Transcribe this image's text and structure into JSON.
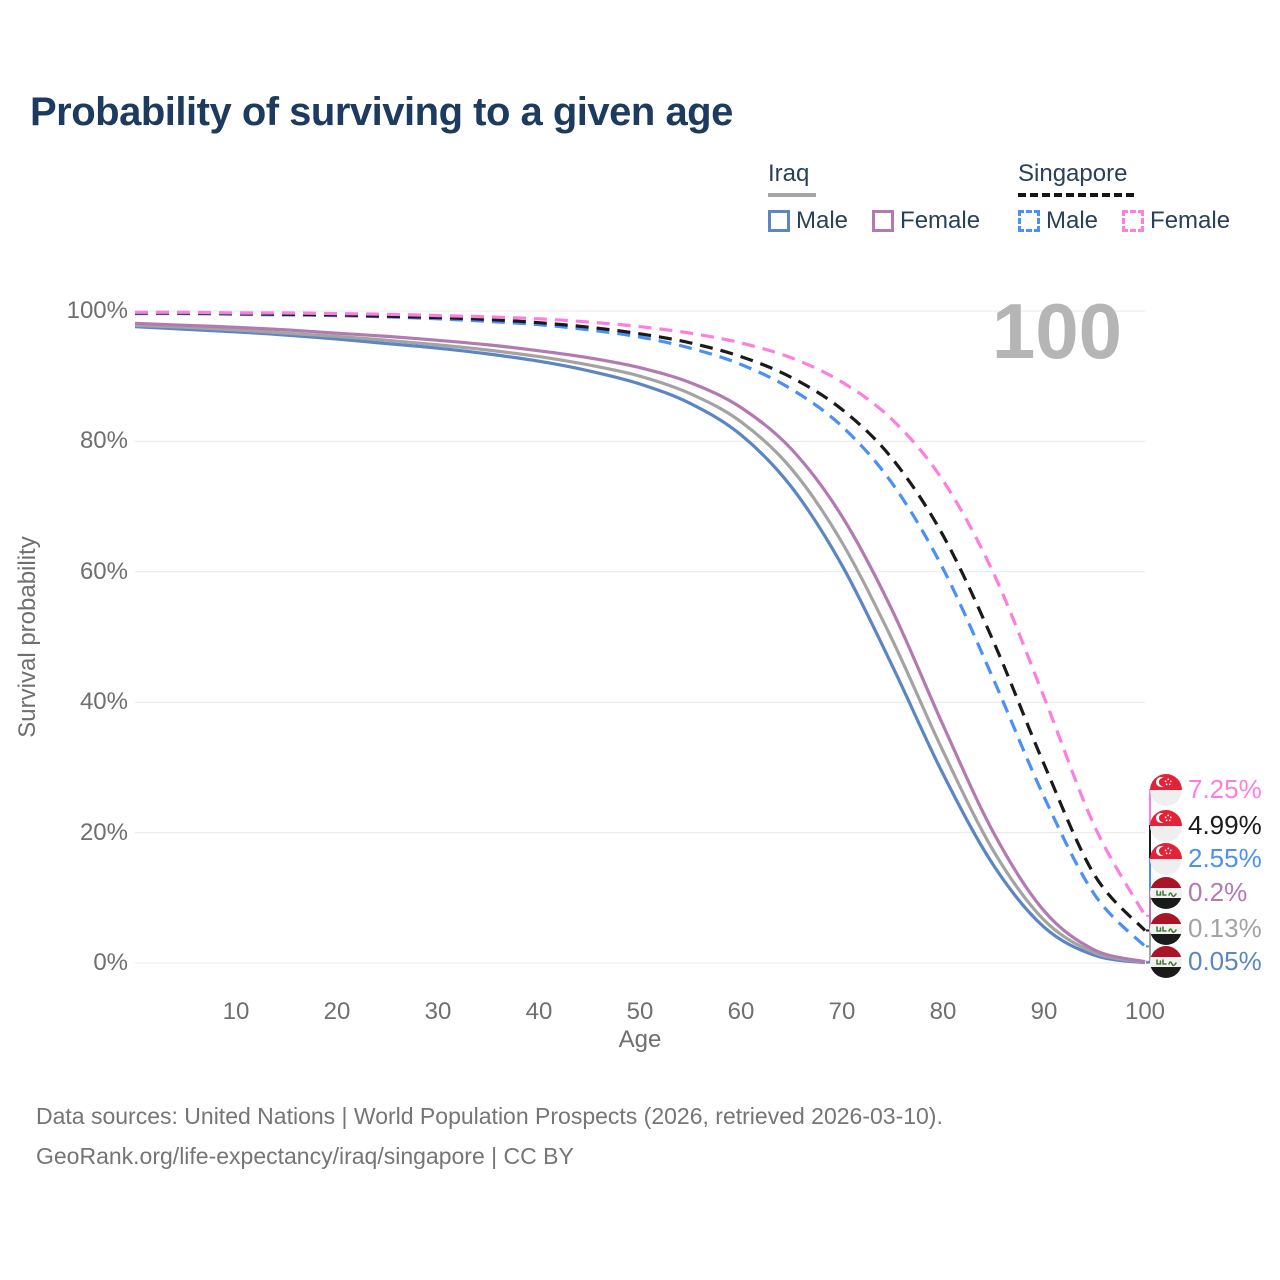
{
  "title": "Probability of surviving to a given age",
  "watermark_age_label": "100",
  "legend": {
    "groups": [
      {
        "country": "Iraq",
        "line_color": "#a6a6a6",
        "line_dashed": false,
        "items": [
          {
            "label": "Male",
            "color": "#5b86c3",
            "dashed": false
          },
          {
            "label": "Female",
            "color": "#b27ab0",
            "dashed": false
          }
        ]
      },
      {
        "country": "Singapore",
        "line_color": "#151515",
        "line_dashed": true,
        "items": [
          {
            "label": "Male",
            "color": "#4a90f5",
            "dashed": true
          },
          {
            "label": "Female",
            "color": "#fc7fe0",
            "dashed": true
          }
        ]
      }
    ]
  },
  "chart_data": {
    "type": "line",
    "title": "Probability of surviving to a given age",
    "xlabel": "Age",
    "ylabel": "Survival probability",
    "xlim": [
      0,
      100
    ],
    "ylim": [
      0,
      100
    ],
    "grid": "horizontal",
    "legend_position": "top-right",
    "xticks": [
      "10",
      "20",
      "30",
      "40",
      "50",
      "60",
      "70",
      "80",
      "90",
      "100"
    ],
    "yticks": [
      "0%",
      "20%",
      "40%",
      "60%",
      "80%",
      "100%"
    ],
    "x_ages": [
      0,
      5,
      10,
      15,
      20,
      25,
      30,
      35,
      40,
      45,
      50,
      55,
      60,
      65,
      70,
      75,
      80,
      85,
      90,
      95,
      100
    ],
    "hover_age": "100",
    "series": [
      {
        "name": "Iraq Male",
        "country": "Iraq",
        "flag": "iraq",
        "color": "#5b86c3",
        "dashed": false,
        "end_label": "0.05%",
        "values": [
          97.6,
          97.2,
          96.8,
          96.3,
          95.7,
          95.0,
          94.3,
          93.4,
          92.3,
          90.8,
          88.8,
          85.8,
          81.0,
          73.0,
          61.0,
          45.5,
          29.0,
          15.0,
          5.5,
          1.2,
          0.05
        ]
      },
      {
        "name": "Iraq",
        "country": "Iraq",
        "flag": "iraq",
        "color": "#a3a3a3",
        "dashed": false,
        "end_label": "0.13%",
        "values": [
          97.8,
          97.5,
          97.1,
          96.6,
          96.1,
          95.5,
          94.8,
          94.0,
          93.0,
          91.7,
          90.0,
          87.3,
          83.0,
          75.8,
          64.5,
          49.5,
          32.5,
          17.2,
          6.6,
          1.6,
          0.13
        ]
      },
      {
        "name": "Iraq Female",
        "country": "Iraq",
        "flag": "iraq",
        "color": "#b27ab0",
        "dashed": false,
        "end_label": "0.2%",
        "values": [
          98.1,
          97.8,
          97.5,
          97.1,
          96.6,
          96.1,
          95.5,
          94.8,
          93.9,
          92.8,
          91.3,
          89.0,
          85.2,
          78.8,
          68.5,
          54.0,
          36.5,
          20.0,
          8.0,
          2.0,
          0.2
        ]
      },
      {
        "name": "Singapore Male",
        "country": "Singapore",
        "flag": "singapore",
        "color": "#4a90f5",
        "dashed": true,
        "end_label": "2.55%",
        "values": [
          99.6,
          99.6,
          99.5,
          99.4,
          99.3,
          99.1,
          98.8,
          98.4,
          97.9,
          97.1,
          96.0,
          94.3,
          91.8,
          88.0,
          82.3,
          73.5,
          60.5,
          43.5,
          25.5,
          10.5,
          2.55
        ]
      },
      {
        "name": "Singapore",
        "country": "Singapore",
        "flag": "singapore",
        "color": "#1a1a1a",
        "dashed": true,
        "end_label": "4.99%",
        "values": [
          99.7,
          99.7,
          99.6,
          99.5,
          99.4,
          99.2,
          99.0,
          98.7,
          98.2,
          97.5,
          96.5,
          95.1,
          93.0,
          89.8,
          84.9,
          77.3,
          65.6,
          49.3,
          30.5,
          13.5,
          4.99
        ]
      },
      {
        "name": "Singapore Female",
        "country": "Singapore",
        "flag": "singapore",
        "color": "#fc7fe0",
        "dashed": true,
        "end_label": "7.25%",
        "values": [
          99.8,
          99.8,
          99.7,
          99.7,
          99.6,
          99.5,
          99.3,
          99.1,
          98.8,
          98.3,
          97.6,
          96.6,
          95.1,
          92.8,
          89.1,
          83.3,
          74.0,
          59.8,
          40.8,
          21.0,
          7.25
        ]
      }
    ]
  },
  "footer": {
    "line1": "Data sources: United Nations | World Population Prospects (2026, retrieved 2026-03-10).",
    "line2": "GeoRank.org/life-expectancy/iraq/singapore | CC BY"
  }
}
